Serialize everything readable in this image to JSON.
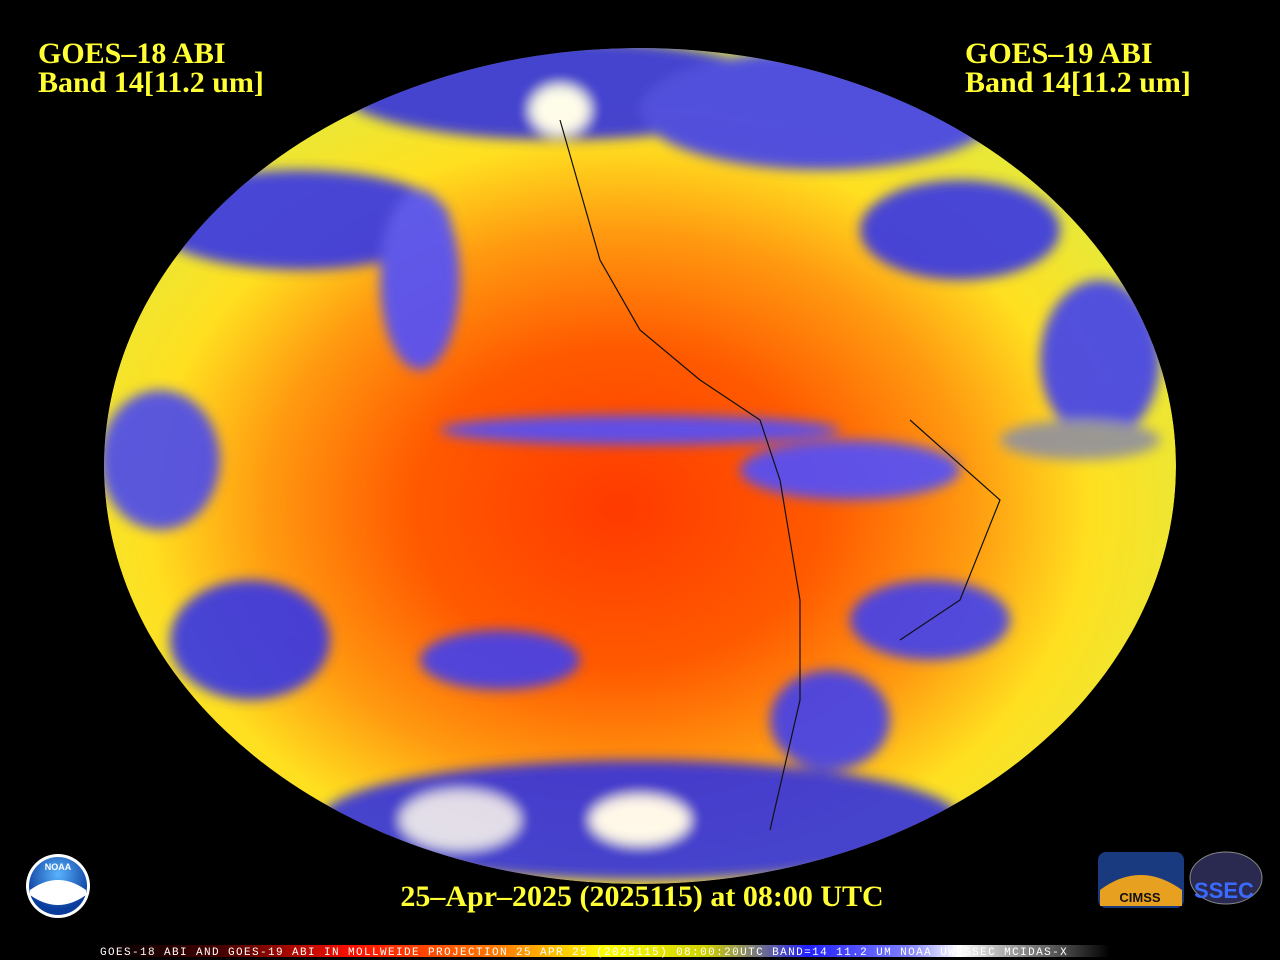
{
  "header": {
    "left_title": "GOES–18 ABI",
    "left_band": "Band 14[11.2 um]",
    "right_title": "GOES–19 ABI",
    "right_band": "Band 14[11.2 um]"
  },
  "timestamp": "25–Apr–2025 (2025115) at 08:00 UTC",
  "footer": "GOES-18 ABI AND GOES-19 ABI IN MOLLWEIDE PROJECTION 25 APR 25 (2025115) 08:00:20UTC BAND=14 11.2 UM NOAA UW-SSEC MCIDAS-X",
  "logos": {
    "noaa": "NOAA",
    "cimss": "CIMSS",
    "ssec": "SSEC"
  }
}
